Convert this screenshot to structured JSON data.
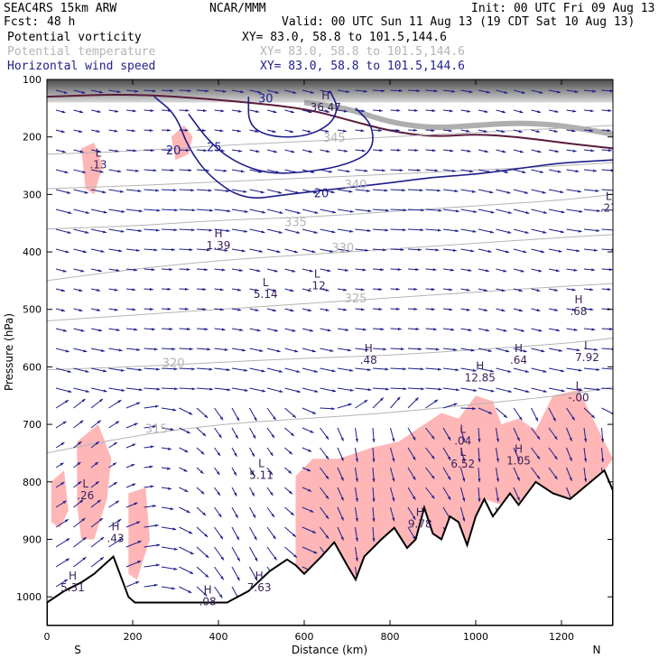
{
  "header": {
    "model": "SEAC4RS 15km ARW",
    "org": "NCAR/MMM",
    "init": "Init: 00 UTC Fri 09 Aug 13",
    "fcst_label": "Fcst:",
    "fcst_value": "48 h",
    "valid": "Valid: 00 UTC Sun 11 Aug 13 (19 CDT Sat 10 Aug 13)"
  },
  "fields": [
    {
      "name": "Potential vorticity",
      "xy": "XY=  83.0, 58.8 to 101.5,144.6",
      "color": "#000000"
    },
    {
      "name": "Potential temperature",
      "xy": "XY=  83.0, 58.8 to 101.5,144.6",
      "color": "#b4b4b4"
    },
    {
      "name": "Horizontal wind speed",
      "xy": "XY=  83.0, 58.8 to 101.5,144.6",
      "color": "#1e1e8c"
    }
  ],
  "colors": {
    "pv_fill": "#ffb6b6",
    "terrain": "#000000",
    "theta": "#b4b4b4",
    "wind_speed": "#1e1e8c",
    "wind_vector": "#1e1e8c",
    "pv_high_shade": "#6e6e6e"
  },
  "chart_data": {
    "type": "cross-section",
    "xlabel": "Distance (km)",
    "ylabel": "Pressure (hPa)",
    "xlim": [
      0,
      1320
    ],
    "ylim": [
      1050,
      100
    ],
    "x_ticks": [
      0,
      200,
      400,
      600,
      800,
      1000,
      1200
    ],
    "y_ticks": [
      100,
      200,
      300,
      400,
      500,
      600,
      700,
      800,
      900,
      1000
    ],
    "x_end_labels": {
      "left": "S",
      "right": "N"
    },
    "terrain_profile": [
      [
        0,
        1010
      ],
      [
        40,
        990
      ],
      [
        80,
        975
      ],
      [
        110,
        960
      ],
      [
        140,
        940
      ],
      [
        155,
        930
      ],
      [
        170,
        960
      ],
      [
        190,
        1000
      ],
      [
        205,
        1010
      ],
      [
        300,
        1010
      ],
      [
        420,
        1010
      ],
      [
        470,
        990
      ],
      [
        520,
        955
      ],
      [
        560,
        935
      ],
      [
        580,
        945
      ],
      [
        600,
        960
      ],
      [
        640,
        930
      ],
      [
        670,
        905
      ],
      [
        700,
        945
      ],
      [
        720,
        970
      ],
      [
        740,
        930
      ],
      [
        780,
        900
      ],
      [
        810,
        880
      ],
      [
        840,
        915
      ],
      [
        860,
        900
      ],
      [
        880,
        845
      ],
      [
        900,
        890
      ],
      [
        920,
        900
      ],
      [
        940,
        860
      ],
      [
        960,
        870
      ],
      [
        980,
        910
      ],
      [
        1000,
        860
      ],
      [
        1020,
        830
      ],
      [
        1040,
        860
      ],
      [
        1060,
        840
      ],
      [
        1080,
        820
      ],
      [
        1100,
        840
      ],
      [
        1140,
        800
      ],
      [
        1180,
        820
      ],
      [
        1220,
        830
      ],
      [
        1260,
        805
      ],
      [
        1300,
        780
      ],
      [
        1320,
        815
      ]
    ],
    "theta_contours": [
      {
        "level": 315,
        "label": "315",
        "label_at": [
          255,
          715
        ],
        "points": [
          [
            0,
            750
          ],
          [
            200,
            720
          ],
          [
            400,
            700
          ],
          [
            600,
            690
          ],
          [
            800,
            680
          ],
          [
            1000,
            665
          ],
          [
            1200,
            650
          ],
          [
            1320,
            635
          ]
        ]
      },
      {
        "level": 320,
        "label": "320",
        "label_at": [
          295,
          600
        ],
        "points": [
          [
            0,
            605
          ],
          [
            200,
            600
          ],
          [
            400,
            592
          ],
          [
            600,
            585
          ],
          [
            800,
            580
          ],
          [
            1000,
            570
          ],
          [
            1200,
            560
          ],
          [
            1320,
            550
          ]
        ]
      },
      {
        "level": 325,
        "label": "325",
        "label_at": [
          720,
          488
        ],
        "points": [
          [
            0,
            520
          ],
          [
            200,
            510
          ],
          [
            400,
            500
          ],
          [
            600,
            490
          ],
          [
            800,
            480
          ],
          [
            1000,
            470
          ],
          [
            1200,
            460
          ],
          [
            1320,
            455
          ]
        ]
      },
      {
        "level": 330,
        "label": "330",
        "label_at": [
          690,
          400
        ],
        "points": [
          [
            0,
            450
          ],
          [
            200,
            430
          ],
          [
            400,
            415
          ],
          [
            600,
            405
          ],
          [
            800,
            395
          ],
          [
            1000,
            385
          ],
          [
            1200,
            375
          ],
          [
            1320,
            370
          ]
        ]
      },
      {
        "level": 335,
        "label": "335",
        "label_at": [
          580,
          355
        ],
        "points": [
          [
            0,
            360
          ],
          [
            200,
            355
          ],
          [
            400,
            345
          ],
          [
            600,
            340
          ],
          [
            800,
            330
          ],
          [
            1000,
            320
          ],
          [
            1200,
            310
          ],
          [
            1320,
            300
          ]
        ]
      },
      {
        "level": 340,
        "label": "340",
        "label_at": [
          720,
          290
        ],
        "points": [
          [
            0,
            290
          ],
          [
            200,
            285
          ],
          [
            400,
            278
          ],
          [
            600,
            272
          ],
          [
            800,
            265
          ],
          [
            1000,
            258
          ],
          [
            1200,
            250
          ],
          [
            1320,
            245
          ]
        ]
      },
      {
        "level": 345,
        "label": "345",
        "label_at": [
          670,
          208
        ],
        "points": [
          [
            0,
            230
          ],
          [
            200,
            225
          ],
          [
            400,
            215
          ],
          [
            600,
            208
          ],
          [
            800,
            200
          ],
          [
            1000,
            192
          ],
          [
            1200,
            185
          ],
          [
            1320,
            180
          ]
        ]
      }
    ],
    "wind_speed_contours": [
      {
        "level": 20,
        "label": "20",
        "label_at": [
          470,
          310
        ],
        "points": [
          [
            250,
            130
          ],
          [
            300,
            160
          ],
          [
            330,
            220
          ],
          [
            380,
            270
          ],
          [
            460,
            310
          ],
          [
            560,
            300
          ],
          [
            680,
            290
          ],
          [
            800,
            280
          ],
          [
            900,
            270
          ],
          [
            1000,
            265
          ],
          [
            1100,
            255
          ],
          [
            1200,
            245
          ],
          [
            1320,
            240
          ]
        ]
      },
      {
        "level": 25,
        "label": "25",
        "label_at": [
          470,
          260
        ],
        "points": [
          [
            330,
            160
          ],
          [
            380,
            210
          ],
          [
            440,
            245
          ],
          [
            520,
            265
          ],
          [
            620,
            260
          ],
          [
            700,
            248
          ],
          [
            760,
            225
          ],
          [
            760,
            180
          ],
          [
            720,
            150
          ]
        ]
      },
      {
        "level": 30,
        "label": "30",
        "label_at": [
          505,
          135
        ],
        "points": [
          [
            470,
            130
          ],
          [
            470,
            180
          ],
          [
            520,
            200
          ],
          [
            600,
            200
          ],
          [
            660,
            180
          ],
          [
            680,
            150
          ],
          [
            660,
            120
          ]
        ]
      }
    ],
    "wind_speed_labels": [
      {
        "text": "20",
        "at": [
          295,
          230
        ]
      },
      {
        "text": "25",
        "at": [
          390,
          225
        ]
      },
      {
        "text": "30",
        "at": [
          510,
          140
        ]
      },
      {
        "text": "20",
        "at": [
          640,
          305
        ]
      }
    ],
    "pv_shaded_regions": [
      {
        "points": [
          [
            290,
            200
          ],
          [
            320,
            180
          ],
          [
            340,
            200
          ],
          [
            330,
            230
          ],
          [
            300,
            240
          ]
        ]
      },
      {
        "points": [
          [
            80,
            220
          ],
          [
            110,
            210
          ],
          [
            130,
            250
          ],
          [
            110,
            300
          ],
          [
            90,
            290
          ]
        ]
      },
      {
        "points": [
          [
            70,
            730
          ],
          [
            120,
            700
          ],
          [
            150,
            760
          ],
          [
            140,
            830
          ],
          [
            110,
            900
          ],
          [
            80,
            900
          ],
          [
            70,
            840
          ]
        ]
      },
      {
        "points": [
          [
            10,
            800
          ],
          [
            40,
            780
          ],
          [
            50,
            850
          ],
          [
            30,
            880
          ],
          [
            10,
            870
          ]
        ]
      },
      {
        "points": [
          [
            190,
            820
          ],
          [
            230,
            810
          ],
          [
            240,
            900
          ],
          [
            210,
            970
          ],
          [
            190,
            960
          ]
        ]
      },
      {
        "points": [
          [
            580,
            790
          ],
          [
            620,
            760
          ],
          [
            680,
            760
          ],
          [
            760,
            740
          ],
          [
            820,
            730
          ],
          [
            880,
            700
          ],
          [
            920,
            680
          ],
          [
            960,
            690
          ],
          [
            1000,
            650
          ],
          [
            1040,
            660
          ],
          [
            1060,
            700
          ],
          [
            1100,
            690
          ],
          [
            1140,
            710
          ],
          [
            1180,
            650
          ],
          [
            1240,
            640
          ],
          [
            1280,
            700
          ],
          [
            1320,
            760
          ],
          [
            1300,
            780
          ],
          [
            1260,
            805
          ],
          [
            1220,
            830
          ],
          [
            1180,
            820
          ],
          [
            1140,
            800
          ],
          [
            1100,
            840
          ],
          [
            1060,
            840
          ],
          [
            1020,
            830
          ],
          [
            1000,
            860
          ],
          [
            980,
            910
          ],
          [
            960,
            870
          ],
          [
            940,
            860
          ],
          [
            920,
            900
          ],
          [
            900,
            890
          ],
          [
            880,
            845
          ],
          [
            860,
            900
          ],
          [
            840,
            915
          ],
          [
            810,
            880
          ],
          [
            780,
            900
          ],
          [
            740,
            930
          ],
          [
            720,
            970
          ],
          [
            700,
            945
          ],
          [
            670,
            905
          ],
          [
            640,
            930
          ],
          [
            600,
            960
          ],
          [
            580,
            945
          ]
        ]
      }
    ],
    "extrema_labels": [
      {
        "type": "H",
        "value": "36.47",
        "at": [
          650,
          155
        ]
      },
      {
        "type": "L",
        "value": ".13",
        "at": [
          120,
          255
        ]
      },
      {
        "type": "H",
        "value": "1.39",
        "at": [
          400,
          395
        ]
      },
      {
        "type": "L",
        "value": ".12",
        "at": [
          630,
          465
        ]
      },
      {
        "type": "L",
        "value": "5.14",
        "at": [
          510,
          480
        ]
      },
      {
        "type": "H",
        "value": ".48",
        "at": [
          750,
          595
        ]
      },
      {
        "type": "H",
        "value": "12.85",
        "at": [
          1010,
          625
        ]
      },
      {
        "type": "H",
        "value": ".64",
        "at": [
          1100,
          595
        ]
      },
      {
        "type": "H",
        "value": ".68",
        "at": [
          1240,
          510
        ]
      },
      {
        "type": "L",
        "value": "7.92",
        "at": [
          1260,
          590
        ]
      },
      {
        "type": "L",
        "value": "-.00",
        "at": [
          1240,
          660
        ]
      },
      {
        "type": "L",
        "value": ".27",
        "at": [
          1310,
          330
        ]
      },
      {
        "type": "L",
        "value": ".04",
        "at": [
          970,
          735
        ]
      },
      {
        "type": "L",
        "value": "6.52",
        "at": [
          970,
          775
        ]
      },
      {
        "type": "H",
        "value": "1.05",
        "at": [
          1100,
          770
        ]
      },
      {
        "type": "L",
        "value": "5.11",
        "at": [
          500,
          795
        ]
      },
      {
        "type": "L",
        "value": ".26",
        "at": [
          90,
          830
        ]
      },
      {
        "type": "H",
        "value": "9.78",
        "at": [
          870,
          880
        ]
      },
      {
        "type": "H",
        "value": "7.63",
        "at": [
          495,
          990
        ]
      },
      {
        "type": "H",
        "value": ".43",
        "at": [
          160,
          905
        ]
      },
      {
        "type": "H",
        "value": "5.31",
        "at": [
          60,
          990
        ]
      },
      {
        "type": "H",
        "value": ".08",
        "at": [
          375,
          1015
        ]
      }
    ]
  }
}
